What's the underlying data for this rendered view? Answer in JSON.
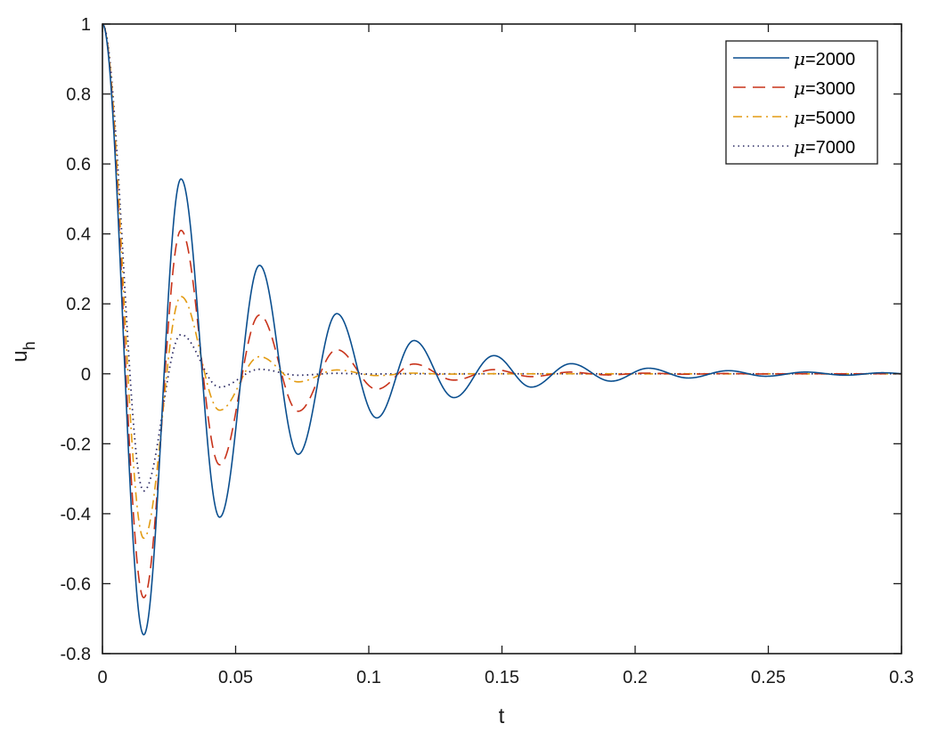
{
  "chart_data": {
    "type": "line",
    "title": "",
    "xlabel": "t",
    "ylabel": "u",
    "ylabel_subscript": "h",
    "xlim": [
      0,
      0.3
    ],
    "ylim": [
      -0.8,
      1
    ],
    "grid": false,
    "legend_position": "upper right",
    "x_ticks": [
      0,
      0.05,
      0.1,
      0.15,
      0.2,
      0.25,
      0.3
    ],
    "x_tick_labels": [
      "0",
      "0.05",
      "0.1",
      "0.15",
      "0.2",
      "0.25",
      "0.3"
    ],
    "y_ticks": [
      -0.8,
      -0.6,
      -0.4,
      -0.2,
      0,
      0.2,
      0.4,
      0.6,
      0.8,
      1
    ],
    "y_tick_labels": [
      "-0.8",
      "-0.6",
      "-0.4",
      "-0.2",
      "0",
      "0.2",
      "0.4",
      "0.6",
      "0.8",
      "1"
    ],
    "series": [
      {
        "name": "μ=2000",
        "legend_label": "=2000",
        "color": "#0b4f8f",
        "style": "solid",
        "extrema_t": [
          0,
          0.0155,
          0.0295,
          0.044,
          0.059,
          0.0735,
          0.088,
          0.103,
          0.117,
          0.132,
          0.147,
          0.161,
          0.176,
          0.191,
          0.205,
          0.22,
          0.235,
          0.249,
          0.264,
          0.279,
          0.293
        ],
        "extrema_u": [
          1,
          -0.746,
          0.557,
          -0.41,
          0.31,
          -0.23,
          0.172,
          -0.126,
          0.095,
          -0.068,
          0.052,
          -0.038,
          0.029,
          -0.021,
          0.016,
          -0.012,
          0.009,
          -0.007,
          0.005,
          -0.004,
          0.003
        ]
      },
      {
        "name": "μ=3000",
        "legend_label": "=3000",
        "color": "#c8331a",
        "style": "dashed",
        "extrema_t": [
          0,
          0.0155,
          0.0295,
          0.044,
          0.059,
          0.0735,
          0.088,
          0.103,
          0.117,
          0.132,
          0.147,
          0.161,
          0.176
        ],
        "extrema_u": [
          1,
          -0.64,
          0.41,
          -0.26,
          0.168,
          -0.107,
          0.069,
          -0.044,
          0.028,
          -0.018,
          0.012,
          -0.008,
          0.005
        ]
      },
      {
        "name": "μ=5000",
        "legend_label": "=5000",
        "color": "#e39b12",
        "style": "dashdot",
        "extrema_t": [
          0,
          0.0155,
          0.0295,
          0.044,
          0.059,
          0.0735,
          0.088,
          0.103,
          0.117
        ],
        "extrema_u": [
          1,
          -0.47,
          0.221,
          -0.104,
          0.049,
          -0.023,
          0.011,
          -0.005,
          0.002
        ]
      },
      {
        "name": "μ=7000",
        "legend_label": "=7000",
        "color": "#2b2a63",
        "style": "dotted",
        "extrema_t": [
          0,
          0.0155,
          0.0295,
          0.044,
          0.059,
          0.0735,
          0.088
        ],
        "extrema_u": [
          1,
          -0.335,
          0.112,
          -0.038,
          0.013,
          -0.004,
          0.0015
        ]
      }
    ]
  },
  "legend": {
    "mu_symbol": "μ",
    "items": [
      "=2000",
      "=3000",
      "=5000",
      "=7000"
    ]
  },
  "axes": {
    "xlabel": "t",
    "ylabel_main": "u",
    "ylabel_sub": "h"
  }
}
